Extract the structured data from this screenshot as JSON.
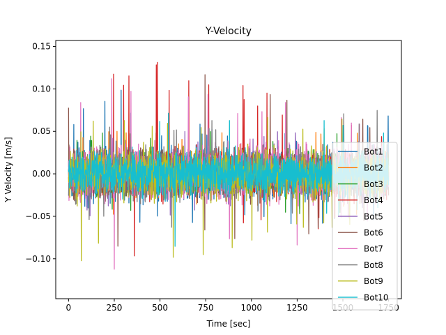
{
  "chart_data": {
    "type": "line",
    "title": "Y-Velocity",
    "xlabel": "Time [sec]",
    "ylabel": "Y Velocity [m/s]",
    "xlim": [
      -70,
      1820
    ],
    "ylim": [
      -0.147,
      0.157
    ],
    "x_ticks": [
      0,
      250,
      500,
      750,
      1000,
      1250,
      1500,
      1750
    ],
    "x_tick_labels": [
      "0",
      "250",
      "500",
      "750",
      "1000",
      "1250",
      "1500",
      "1750"
    ],
    "y_ticks": [
      -0.1,
      -0.05,
      0.0,
      0.05,
      0.1,
      0.15
    ],
    "y_tick_labels": [
      "−0.10",
      "−0.05",
      "0.00",
      "0.05",
      "0.10",
      "0.15"
    ],
    "grid": false,
    "legend_position": "right",
    "x_range_of_data": [
      0,
      1750
    ],
    "series": [
      {
        "name": "Bot1",
        "color": "#1f77b4",
        "amplitude": 0.027,
        "envelope": [
          [
            0,
            -0.075,
            0.08
          ],
          [
            300,
            -0.1,
            0.1
          ],
          [
            400,
            -0.06,
            0.06
          ],
          [
            1750,
            -0.06,
            0.07
          ]
        ]
      },
      {
        "name": "Bot2",
        "color": "#ff7f0e",
        "amplitude": 0.02,
        "envelope": [
          [
            0,
            -0.05,
            0.05
          ],
          [
            1750,
            -0.05,
            0.05
          ]
        ]
      },
      {
        "name": "Bot3",
        "color": "#2ca02c",
        "amplitude": 0.02,
        "envelope": [
          [
            0,
            -0.05,
            0.05
          ],
          [
            1750,
            -0.05,
            0.05
          ]
        ]
      },
      {
        "name": "Bot4",
        "color": "#d62728",
        "amplitude": 0.024,
        "envelope": [
          [
            0,
            -0.1,
            0.08
          ],
          [
            330,
            -0.1,
            0.14
          ],
          [
            1750,
            -0.055,
            0.06
          ]
        ]
      },
      {
        "name": "Bot5",
        "color": "#9467bd",
        "amplitude": 0.02,
        "envelope": [
          [
            0,
            -0.05,
            0.05
          ],
          [
            1750,
            -0.05,
            0.05
          ]
        ]
      },
      {
        "name": "Bot6",
        "color": "#8c564b",
        "amplitude": 0.025,
        "envelope": [
          [
            0,
            -0.128,
            0.08
          ],
          [
            330,
            -0.1,
            0.142
          ],
          [
            1750,
            -0.06,
            0.06
          ]
        ]
      },
      {
        "name": "Bot7",
        "color": "#e377c2",
        "amplitude": 0.028,
        "envelope": [
          [
            0,
            -0.1,
            0.09
          ],
          [
            300,
            -0.133,
            0.13
          ],
          [
            1750,
            -0.06,
            0.06
          ]
        ]
      },
      {
        "name": "Bot8",
        "color": "#7f7f7f",
        "amplitude": 0.026,
        "envelope": [
          [
            0,
            -0.07,
            0.06
          ],
          [
            1250,
            -0.06,
            0.077
          ],
          [
            1750,
            -0.06,
            0.076
          ]
        ]
      },
      {
        "name": "Bot9",
        "color": "#bcbd22",
        "amplitude": 0.025,
        "envelope": [
          [
            0,
            -0.1,
            0.06
          ],
          [
            300,
            -0.115,
            0.07
          ],
          [
            1750,
            -0.06,
            0.07
          ]
        ]
      },
      {
        "name": "Bot10",
        "color": "#17becf",
        "amplitude": 0.022,
        "envelope": [
          [
            0,
            -0.09,
            0.106
          ],
          [
            300,
            -0.11,
            0.09
          ],
          [
            1750,
            -0.04,
            0.055
          ]
        ]
      }
    ]
  }
}
